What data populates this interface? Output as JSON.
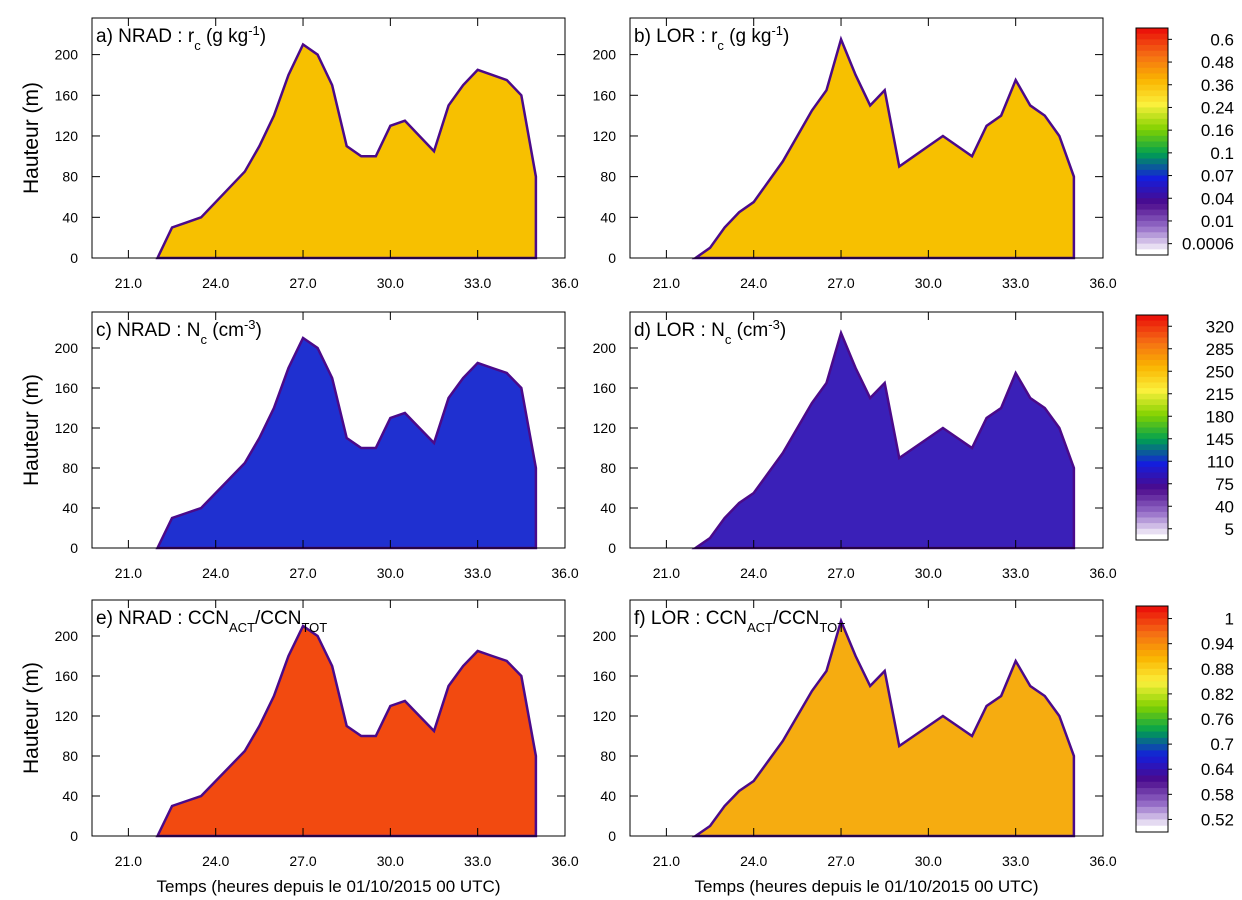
{
  "axes": {
    "xlim": [
      19.75,
      36
    ],
    "ylim": [
      0,
      236
    ],
    "xticks": [
      {
        "value": 21,
        "label": "21.0"
      },
      {
        "value": 24,
        "label": "24.0"
      },
      {
        "value": 27,
        "label": "27.0"
      },
      {
        "value": 30,
        "label": "30.0"
      },
      {
        "value": 33,
        "label": "33.0"
      },
      {
        "value": 36,
        "label": "36.0"
      }
    ],
    "yticks": [
      0,
      40,
      80,
      120,
      160,
      200
    ],
    "xlabel": "Temps (heures depuis le 01/10/2015 00 UTC)",
    "ylabel": "Hauteur (m)"
  },
  "chart_data": [
    {
      "type": "area",
      "title": [
        "a) NRAD : r",
        "c",
        " (g kg",
        "-1",
        ")"
      ],
      "color": "#f7c000",
      "edge_color": "#4b0a8a",
      "x": [
        22,
        22.5,
        23,
        23.5,
        24,
        24.5,
        25,
        25.5,
        26,
        26.5,
        27,
        27.5,
        28,
        28.5,
        29,
        29.5,
        30,
        30.5,
        31,
        31.5,
        32,
        32.5,
        33,
        33.5,
        34,
        34.5,
        35
      ],
      "values": [
        0,
        30,
        35,
        40,
        55,
        70,
        85,
        110,
        140,
        180,
        210,
        200,
        170,
        110,
        100,
        100,
        130,
        135,
        120,
        105,
        150,
        170,
        185,
        180,
        175,
        160,
        80
      ]
    },
    {
      "type": "area",
      "title": [
        "b) LOR : r",
        "c",
        " (g kg",
        "-1",
        ")"
      ],
      "color": "#f7c000",
      "edge_color": "#4b0a8a",
      "x": [
        22,
        22.5,
        23,
        23.5,
        24,
        24.5,
        25,
        25.5,
        26,
        26.5,
        27,
        27.5,
        28,
        28.5,
        29,
        29.5,
        30,
        30.5,
        31,
        31.5,
        32,
        32.5,
        33,
        33.5,
        34,
        34.5,
        35
      ],
      "values": [
        0,
        10,
        30,
        45,
        55,
        75,
        95,
        120,
        145,
        165,
        215,
        180,
        150,
        165,
        90,
        100,
        110,
        120,
        110,
        100,
        130,
        140,
        175,
        150,
        140,
        120,
        80
      ]
    },
    {
      "type": "area",
      "title": [
        "c) NRAD : N",
        "c",
        " (cm",
        "-3",
        ")"
      ],
      "color": "#1f30d0",
      "edge_color": "#4b0a8a",
      "x": [
        22,
        22.5,
        23,
        23.5,
        24,
        24.5,
        25,
        25.5,
        26,
        26.5,
        27,
        27.5,
        28,
        28.5,
        29,
        29.5,
        30,
        30.5,
        31,
        31.5,
        32,
        32.5,
        33,
        33.5,
        34,
        34.5,
        35
      ],
      "values": [
        0,
        30,
        35,
        40,
        55,
        70,
        85,
        110,
        140,
        180,
        210,
        200,
        170,
        110,
        100,
        100,
        130,
        135,
        120,
        105,
        150,
        170,
        185,
        180,
        175,
        160,
        80
      ]
    },
    {
      "type": "area",
      "title": [
        "d) LOR : N",
        "c",
        " (cm",
        "-3",
        ")"
      ],
      "color": "#3a20b8",
      "edge_color": "#4b0a8a",
      "x": [
        22,
        22.5,
        23,
        23.5,
        24,
        24.5,
        25,
        25.5,
        26,
        26.5,
        27,
        27.5,
        28,
        28.5,
        29,
        29.5,
        30,
        30.5,
        31,
        31.5,
        32,
        32.5,
        33,
        33.5,
        34,
        34.5,
        35
      ],
      "values": [
        0,
        10,
        30,
        45,
        55,
        75,
        95,
        120,
        145,
        165,
        215,
        180,
        150,
        165,
        90,
        100,
        110,
        120,
        110,
        100,
        130,
        140,
        175,
        150,
        140,
        120,
        80
      ]
    },
    {
      "type": "area",
      "title": [
        "e) NRAD : CCN",
        "ACT",
        "/CCN",
        "TOT",
        ""
      ],
      "color": "#f24a10",
      "edge_color": "#4b0a8a",
      "x": [
        22,
        22.5,
        23,
        23.5,
        24,
        24.5,
        25,
        25.5,
        26,
        26.5,
        27,
        27.5,
        28,
        28.5,
        29,
        29.5,
        30,
        30.5,
        31,
        31.5,
        32,
        32.5,
        33,
        33.5,
        34,
        34.5,
        35
      ],
      "values": [
        0,
        30,
        35,
        40,
        55,
        70,
        85,
        110,
        140,
        180,
        210,
        200,
        170,
        110,
        100,
        100,
        130,
        135,
        120,
        105,
        150,
        170,
        185,
        180,
        175,
        160,
        80
      ]
    },
    {
      "type": "area",
      "title": [
        "f) LOR : CCN",
        "ACT",
        "/CCN",
        "TOT",
        ""
      ],
      "color": "#f6ac10",
      "edge_color": "#4b0a8a",
      "x": [
        22,
        22.5,
        23,
        23.5,
        24,
        24.5,
        25,
        25.5,
        26,
        26.5,
        27,
        27.5,
        28,
        28.5,
        29,
        29.5,
        30,
        30.5,
        31,
        31.5,
        32,
        32.5,
        33,
        33.5,
        34,
        34.5,
        35
      ],
      "values": [
        0,
        10,
        30,
        45,
        55,
        75,
        95,
        120,
        145,
        165,
        215,
        180,
        150,
        165,
        90,
        100,
        110,
        120,
        110,
        100,
        130,
        140,
        175,
        150,
        140,
        120,
        80
      ]
    }
  ],
  "colorbars": [
    {
      "labels": [
        0.6,
        0.48,
        0.36,
        0.24,
        0.16,
        0.1,
        0.07,
        0.04,
        0.01,
        0.0006
      ]
    },
    {
      "labels": [
        320,
        285,
        250,
        215,
        180,
        145,
        110,
        75,
        40,
        5
      ]
    },
    {
      "labels": [
        1,
        0.94,
        0.88,
        0.82,
        0.76,
        0.7,
        0.64,
        0.58,
        0.52
      ]
    }
  ]
}
